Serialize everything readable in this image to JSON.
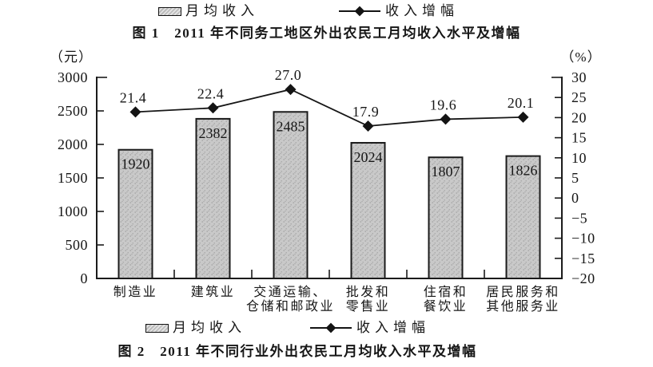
{
  "legend_top": {
    "bar_label": "月均收入",
    "line_label": "收入增幅"
  },
  "title_top": "图 1　2011 年不同务工地区外出农民工月均收入水平及增幅",
  "legend_bottom": {
    "bar_label": "月均收入",
    "line_label": "收入增幅"
  },
  "title_bottom": "图 2　2011 年不同行业外出农民工月均收入水平及增幅",
  "chart_data": {
    "type": "bar",
    "combo": "bar+line dual axis",
    "categories": [
      [
        "制造业"
      ],
      [
        "建筑业"
      ],
      [
        "交通运输、",
        "仓储和邮政业"
      ],
      [
        "批发和",
        "零售业"
      ],
      [
        "住宿和",
        "餐饮业"
      ],
      [
        "居民服务和",
        "其他服务业"
      ]
    ],
    "series": [
      {
        "name": "月均收入",
        "type": "bar",
        "axis": "left",
        "values": [
          1920,
          2382,
          2485,
          2024,
          1807,
          1826
        ],
        "labels": [
          "1920",
          "2382",
          "2485",
          "2024",
          "1807",
          "1826"
        ]
      },
      {
        "name": "收入增幅",
        "type": "line",
        "axis": "right",
        "values": [
          21.4,
          22.4,
          27.0,
          17.9,
          19.6,
          20.1
        ],
        "labels": [
          "21.4",
          "22.4",
          "27.0",
          "17.9",
          "19.6",
          "20.1"
        ]
      }
    ],
    "left_axis": {
      "unit": "（元）",
      "min": 0,
      "max": 3000,
      "step": 500
    },
    "right_axis": {
      "unit": "（%）",
      "min": -20,
      "max": 30,
      "step": 5
    },
    "grid": false,
    "legend_position": "top and bottom"
  },
  "colors": {
    "background": "#ffffff",
    "text": "#161616",
    "bar_fill": "#c9c9c9",
    "bar_speckle": "#a0a0a0",
    "bar_stroke": "#1b1b1b",
    "line": "#161616",
    "marker": "#141414",
    "axis": "#1b1b1b"
  }
}
